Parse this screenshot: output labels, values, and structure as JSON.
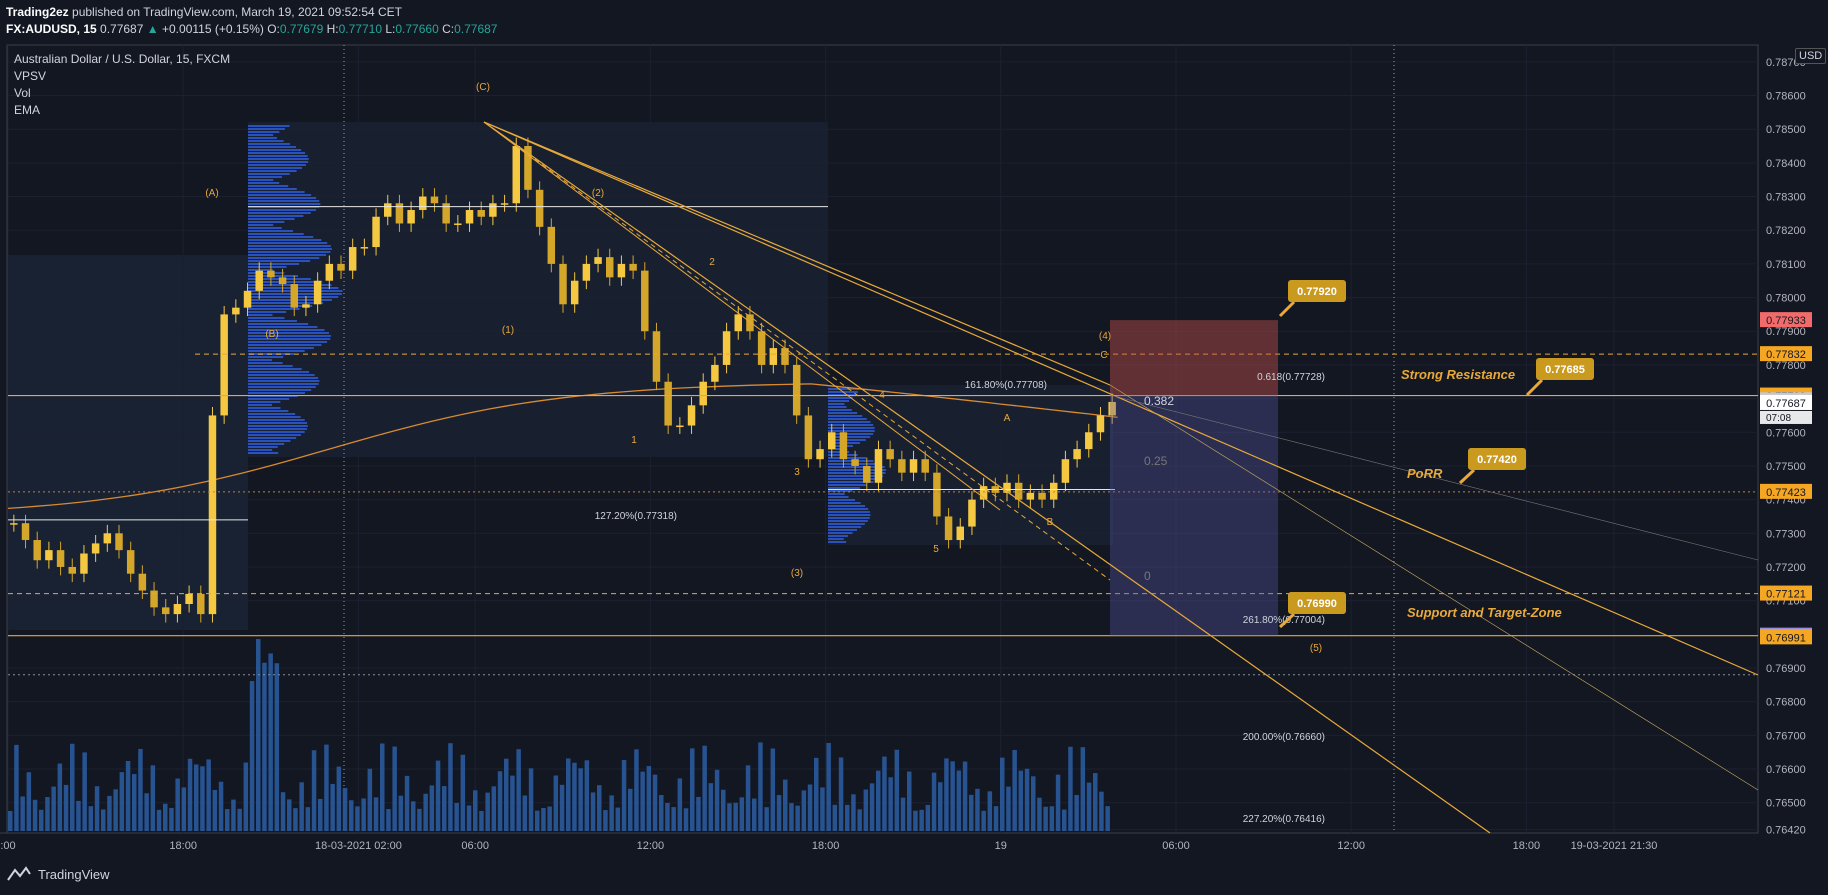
{
  "header": {
    "publisher": "Trading2ez",
    "published_text": "published on TradingView.com, March 19, 2021 09:52:54 CET",
    "symbol": "FX:AUDUSD, 15",
    "change_arrow": "▲",
    "change": "+0.00115 (+0.15%)",
    "o_label": "O:",
    "o": "0.77679",
    "h_label": "H:",
    "h": "0.77710",
    "l_label": "L:",
    "l": "0.77660",
    "c_label": "C:",
    "c": "0.77687"
  },
  "legend": {
    "title": "Australian Dollar / U.S. Dollar, 15, FXCM",
    "items": [
      "VPSV",
      "Vol",
      "EMA"
    ]
  },
  "currency_button": "USD",
  "branding": "TradingView",
  "colors": {
    "background": "#131722",
    "up": "#f5c842",
    "down": "#d4a62a",
    "drawing": "#e8a93a",
    "volume": "#2a5a9c",
    "ema": "#d98a30",
    "grid": "#1c2030"
  },
  "chart_data": {
    "type": "candlestick",
    "title": "Australian Dollar / U.S. Dollar, 15, FXCM",
    "y_range": [
      0.7641,
      0.7875
    ],
    "y_ticks": [
      "0.78700",
      "0.78600",
      "0.78500",
      "0.78400",
      "0.78300",
      "0.78200",
      "0.78100",
      "0.78000",
      "0.77900",
      "0.77800",
      "0.77700",
      "0.77600",
      "0.77500",
      "0.77400",
      "0.77300",
      "0.77200",
      "0.77100",
      "0.76900",
      "0.76800",
      "0.76700",
      "0.76600",
      "0.76500",
      "0.76420"
    ],
    "x_ticks": [
      {
        "t": 0,
        "label": ":00"
      },
      {
        "t": 12,
        "label": "18:00"
      },
      {
        "t": 24,
        "label": "18-03-2021   02:00"
      },
      {
        "t": 32,
        "label": "06:00"
      },
      {
        "t": 44,
        "label": "12:00"
      },
      {
        "t": 56,
        "label": "18:00"
      },
      {
        "t": 68,
        "label": "19"
      },
      {
        "t": 80,
        "label": "06:00"
      },
      {
        "t": 92,
        "label": "12:00"
      },
      {
        "t": 104,
        "label": "18:00"
      },
      {
        "t": 110,
        "label": "19-03-2021   21:30"
      },
      {
        "t": 128,
        "label": "06:00"
      },
      {
        "t": 140,
        "label": "12:00"
      }
    ],
    "ohlc_close": [
      0.7733,
      0.7728,
      0.7722,
      0.7725,
      0.772,
      0.7718,
      0.7724,
      0.7727,
      0.773,
      0.7725,
      0.7718,
      0.7713,
      0.7708,
      0.7706,
      0.7709,
      0.7712,
      0.7706,
      0.7765,
      0.7795,
      0.7797,
      0.7802,
      0.7808,
      0.7806,
      0.7804,
      0.7797,
      0.7798,
      0.7805,
      0.781,
      0.7808,
      0.7815,
      0.7815,
      0.7824,
      0.7828,
      0.7822,
      0.7826,
      0.783,
      0.7828,
      0.7822,
      0.7822,
      0.7826,
      0.7824,
      0.7828,
      0.7828,
      0.7845,
      0.7832,
      0.7821,
      0.781,
      0.7798,
      0.7805,
      0.781,
      0.7812,
      0.7806,
      0.781,
      0.7808,
      0.779,
      0.7775,
      0.7762,
      0.7762,
      0.7768,
      0.7775,
      0.778,
      0.779,
      0.7795,
      0.779,
      0.778,
      0.7785,
      0.778,
      0.7765,
      0.7752,
      0.7755,
      0.776,
      0.7752,
      0.775,
      0.7745,
      0.7755,
      0.7752,
      0.7748,
      0.7752,
      0.7748,
      0.7735,
      0.7728,
      0.7732,
      0.774,
      0.7744,
      0.7742,
      0.7745,
      0.774,
      0.7742,
      0.774,
      0.7745,
      0.7752,
      0.7755,
      0.776,
      0.7765,
      0.7769
    ],
    "annotations": {
      "waves": [
        "(A)",
        "(B)",
        "(C)",
        "(1)",
        "(2)",
        "(3)",
        "(4)",
        "(5)",
        "1",
        "2",
        "3",
        "4",
        "5",
        "A",
        "B",
        "C"
      ],
      "fib_labels": [
        "161.80%(0.77708)",
        "127.20%(0.77318)",
        "0.618(0.77728)",
        "261.80%(0.77004)",
        "200.00%(0.76660)",
        "227.20%(0.76416)"
      ],
      "fib_levels": [
        "0.382",
        "0.25",
        "0"
      ],
      "text_notes": [
        "Strong Resistance",
        "PoRR",
        "Support and Target-Zone"
      ],
      "callouts": [
        "0.77920",
        "0.77685",
        "0.77420",
        "0.76990"
      ]
    },
    "price_tags": [
      {
        "price": 0.77933,
        "label": "0.77933",
        "color": "#f26b6b"
      },
      {
        "price": 0.77832,
        "label": "0.77832",
        "color": "#f5a623"
      },
      {
        "price": 0.77709,
        "label": "0.77709",
        "color": "#f5a623"
      },
      {
        "price": 0.77695,
        "label": "0.77695",
        "color": "#c8c8c8"
      },
      {
        "price": 0.77687,
        "label": "0.77687",
        "color": "#ffffff"
      },
      {
        "price": 0.77423,
        "label": "0.77423",
        "color": "#f5a623"
      },
      {
        "price": 0.77121,
        "label": "0.77121",
        "color": "#f5a623"
      },
      {
        "price": 0.76996,
        "label": "0.76996",
        "color": "#9a8ee0"
      },
      {
        "price": 0.76991,
        "label": "0.76991",
        "color": "#f5a623"
      }
    ],
    "countdown": "07:08"
  }
}
